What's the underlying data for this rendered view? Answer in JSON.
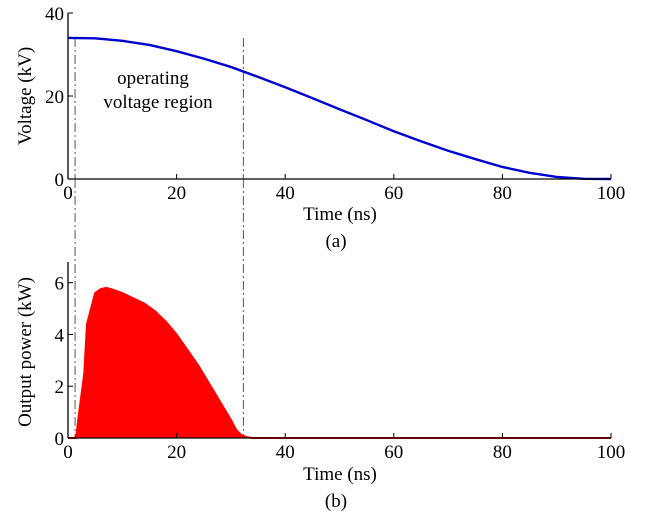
{
  "chart_data": [
    {
      "id": "voltage",
      "type": "line",
      "xlabel": "Time (ns)",
      "ylabel": "Voltage (kV)",
      "panel_label": "(a)",
      "xlim": [
        0,
        100
      ],
      "ylim": [
        0,
        40
      ],
      "xticks": [
        "0",
        "20",
        "40",
        "60",
        "80",
        "100"
      ],
      "yticks": [
        "0",
        "20",
        "40"
      ],
      "annotation": [
        "operating",
        "voltage region"
      ],
      "guide_lines_x": [
        1.3,
        32.3
      ],
      "series": [
        {
          "color": "#0000cc",
          "x": [
            0,
            5,
            10,
            15,
            20,
            25,
            30,
            35,
            40,
            45,
            50,
            55,
            60,
            65,
            70,
            75,
            80,
            85,
            90,
            95,
            100
          ],
          "y": [
            34.0,
            33.9,
            33.3,
            32.3,
            30.8,
            29.0,
            27.0,
            24.6,
            22.1,
            19.5,
            16.8,
            14.2,
            11.5,
            9.1,
            6.8,
            4.8,
            2.9,
            1.5,
            0.5,
            0.05,
            0.0
          ]
        }
      ]
    },
    {
      "id": "power",
      "type": "area",
      "xlabel": "Time (ns)",
      "ylabel": "Output power (kW)",
      "panel_label": "(b)",
      "xlim": [
        0,
        100
      ],
      "ylim": [
        0,
        6.8
      ],
      "xticks": [
        "0",
        "20",
        "40",
        "60",
        "80",
        "100"
      ],
      "yticks": [
        "0",
        "2",
        "4",
        "6"
      ],
      "guide_lines_x": [
        1.3,
        32.3
      ],
      "series": [
        {
          "color": "#ff0000",
          "x": [
            0,
            1.5,
            2.0,
            3.0,
            3.5,
            4.0,
            5.0,
            6.0,
            7.0,
            8.0,
            10.0,
            12.0,
            14.0,
            16.0,
            18.0,
            20.0,
            22.0,
            24.0,
            26.0,
            28.0,
            30.0,
            31.0,
            32.0,
            33.0,
            34.0,
            35.0,
            40,
            60,
            80,
            100
          ],
          "y": [
            0,
            0,
            0.9,
            2.5,
            4.4,
            4.8,
            5.6,
            5.75,
            5.8,
            5.75,
            5.6,
            5.4,
            5.2,
            4.9,
            4.5,
            4.0,
            3.4,
            2.8,
            2.1,
            1.4,
            0.7,
            0.3,
            0.1,
            0.03,
            0.0,
            0.0,
            0.0,
            0.0,
            0.0,
            0.0
          ]
        }
      ]
    }
  ]
}
